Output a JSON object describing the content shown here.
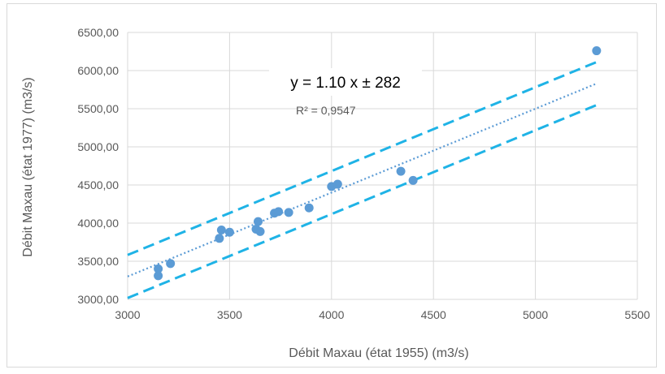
{
  "chart_data": {
    "type": "scatter",
    "xlabel": "Débit Maxau (état 1955) (m3/s)",
    "ylabel": "Débit Maxau (état 1977) (m3/s)",
    "xlim": [
      3000,
      5500
    ],
    "ylim": [
      3000,
      6500
    ],
    "x_ticks": [
      "3000",
      "3500",
      "4000",
      "4500",
      "5000",
      "5500"
    ],
    "y_ticks": [
      "3000,00",
      "3500,00",
      "4000,00",
      "4500,00",
      "5000,00",
      "5500,00",
      "6000,00",
      "6500,00"
    ],
    "grid": true,
    "equation_label": "y = 1.10 x ± 282",
    "r2_label": "R² = 0,9547",
    "trendline": {
      "x": [
        3000,
        5300
      ],
      "y": [
        3300,
        5830
      ]
    },
    "upper_band": {
      "x": [
        3000,
        5300
      ],
      "y": [
        3582,
        6112
      ]
    },
    "lower_band": {
      "x": [
        3000,
        5300
      ],
      "y": [
        3018,
        5548
      ]
    },
    "points": [
      [
        3150,
        3400
      ],
      [
        3150,
        3310
      ],
      [
        3210,
        3470
      ],
      [
        3450,
        3800
      ],
      [
        3460,
        3910
      ],
      [
        3500,
        3880
      ],
      [
        3630,
        3920
      ],
      [
        3640,
        4020
      ],
      [
        3650,
        3890
      ],
      [
        3720,
        4130
      ],
      [
        3740,
        4150
      ],
      [
        3790,
        4140
      ],
      [
        3890,
        4200
      ],
      [
        4000,
        4480
      ],
      [
        4030,
        4510
      ],
      [
        4340,
        4680
      ],
      [
        4400,
        4560
      ],
      [
        5300,
        6260
      ]
    ],
    "colors": {
      "marker": "#5b9bd5",
      "band": "#1fb3e6",
      "trend": "#5b9bd5",
      "grid": "#d9d9d9"
    }
  }
}
